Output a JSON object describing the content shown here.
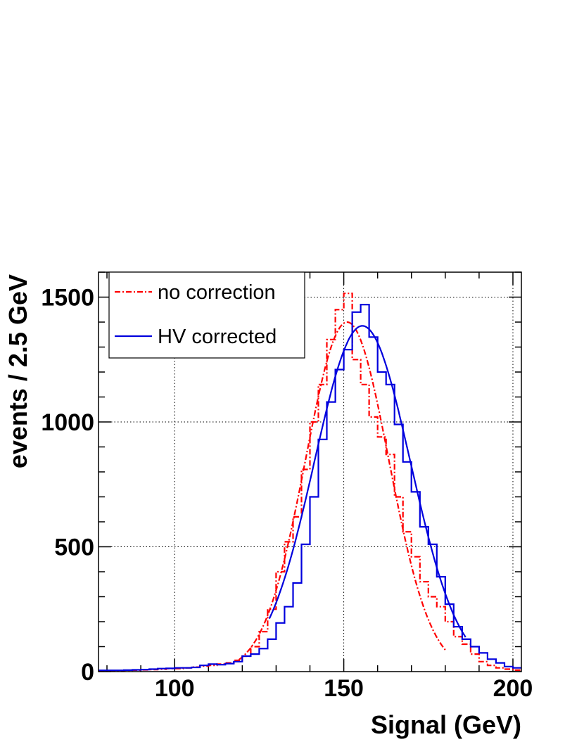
{
  "chart_data": {
    "type": "line",
    "xlabel": "Signal (GeV)",
    "ylabel": "events / 2.5 GeV",
    "xlim": [
      77.5,
      202.5
    ],
    "ylim": [
      0,
      1600
    ],
    "x_ticks": [
      100,
      150,
      200
    ],
    "y_ticks": [
      0,
      500,
      1000,
      1500
    ],
    "grid": true,
    "legend_position": "top-left",
    "bin_width": 2.5,
    "colors": {
      "no_correction": "#ff0000",
      "hv_corrected": "#0000dd"
    },
    "series": [
      {
        "name": "no correction",
        "style": "histogram-dashdot",
        "bin_low_edges": [
          77.5,
          80,
          82.5,
          85,
          87.5,
          90,
          92.5,
          95,
          97.5,
          100,
          102.5,
          105,
          107.5,
          110,
          112.5,
          115,
          117.5,
          120,
          122.5,
          125,
          127.5,
          130,
          132.5,
          135,
          137.5,
          140,
          142.5,
          145,
          147.5,
          150,
          152.5,
          155,
          157.5,
          160,
          162.5,
          165,
          167.5,
          170,
          172.5,
          175,
          177.5,
          180,
          182.5,
          185,
          187.5,
          190,
          192.5,
          195,
          197.5,
          200
        ],
        "values": [
          3,
          3,
          4,
          5,
          6,
          7,
          8,
          10,
          12,
          12,
          15,
          18,
          22,
          25,
          30,
          35,
          45,
          62,
          100,
          160,
          250,
          400,
          520,
          620,
          810,
          1000,
          1150,
          1330,
          1450,
          1515,
          1250,
          1150,
          1020,
          940,
          870,
          700,
          560,
          460,
          360,
          300,
          260,
          200,
          140,
          110,
          70,
          40,
          25,
          15,
          10,
          6
        ]
      },
      {
        "name": "",
        "style": "fit-dashdot",
        "gauss": {
          "amplitude": 1400,
          "mean": 151,
          "sigma": 12.3
        },
        "x_range": [
          119,
          180
        ]
      },
      {
        "name": "HV corrected",
        "style": "histogram-solid",
        "bin_low_edges": [
          77.5,
          80,
          82.5,
          85,
          87.5,
          90,
          92.5,
          95,
          97.5,
          100,
          102.5,
          105,
          107.5,
          110,
          112.5,
          115,
          117.5,
          120,
          122.5,
          125,
          127.5,
          130,
          132.5,
          135,
          137.5,
          140,
          142.5,
          145,
          147.5,
          150,
          152.5,
          155,
          157.5,
          160,
          162.5,
          165,
          167.5,
          170,
          172.5,
          175,
          177.5,
          180,
          182.5,
          185,
          187.5,
          190,
          192.5,
          195,
          197.5,
          200
        ],
        "values": [
          5,
          5,
          5,
          6,
          7,
          8,
          10,
          12,
          13,
          15,
          15,
          17,
          25,
          30,
          28,
          32,
          40,
          62,
          70,
          92,
          130,
          195,
          260,
          355,
          510,
          700,
          930,
          1080,
          1210,
          1290,
          1440,
          1470,
          1340,
          1200,
          1150,
          990,
          840,
          720,
          580,
          510,
          380,
          270,
          180,
          130,
          100,
          75,
          50,
          35,
          20,
          15
        ]
      },
      {
        "name": "",
        "style": "fit-solid",
        "gauss": {
          "amplitude": 1385,
          "mean": 155.5,
          "sigma": 14.2
        },
        "x_range": [
          128,
          186
        ]
      }
    ]
  }
}
